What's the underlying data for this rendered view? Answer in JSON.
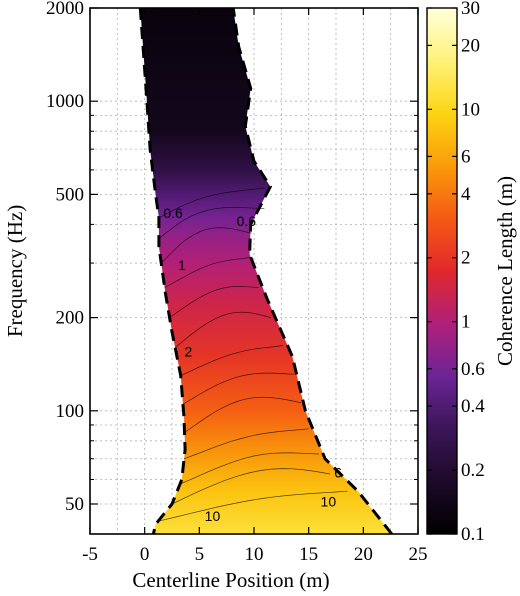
{
  "chart_data": {
    "type": "heatmap",
    "xlabel": "Centerline Position (m)",
    "ylabel": "Frequency (Hz)",
    "colorbar_label": "Coherence Length (m)",
    "xlim": [
      -5,
      25
    ],
    "ylim": [
      40,
      2000
    ],
    "y_scale": "log",
    "grid": true,
    "x_ticks": [
      -5,
      0,
      5,
      10,
      15,
      20,
      25
    ],
    "y_ticks": [
      50,
      100,
      200,
      500,
      1000,
      2000
    ],
    "colorbar_scale": "log",
    "colorbar_range": [
      0.1,
      30
    ],
    "colorbar_ticks": [
      0.1,
      0.2,
      0.4,
      0.6,
      1,
      2,
      4,
      6,
      10,
      20,
      30
    ],
    "contour_labels": [
      {
        "text": "0.6",
        "x": 2.6,
        "f": 420
      },
      {
        "text": "0.6",
        "x": 9.3,
        "f": 395
      },
      {
        "text": "1",
        "x": 3.4,
        "f": 285
      },
      {
        "text": "2",
        "x": 4.0,
        "f": 150
      },
      {
        "text": "6",
        "x": 17.7,
        "f": 61
      },
      {
        "text": "10",
        "x": 6.2,
        "f": 44
      },
      {
        "text": "10",
        "x": 16.8,
        "f": 49
      }
    ],
    "region_left_boundary": [
      {
        "x": -0.4,
        "f": 2000
      },
      {
        "x": 0.2,
        "f": 1000
      },
      {
        "x": 0.5,
        "f": 700
      },
      {
        "x": 1.0,
        "f": 500
      },
      {
        "x": 1.3,
        "f": 420
      },
      {
        "x": 1.3,
        "f": 340
      },
      {
        "x": 1.9,
        "f": 240
      },
      {
        "x": 2.5,
        "f": 180
      },
      {
        "x": 3.3,
        "f": 130
      },
      {
        "x": 3.6,
        "f": 95
      },
      {
        "x": 3.7,
        "f": 75
      },
      {
        "x": 3.4,
        "f": 60
      },
      {
        "x": 2.5,
        "f": 50
      },
      {
        "x": 1.0,
        "f": 43
      },
      {
        "x": 0.8,
        "f": 40
      }
    ],
    "region_right_boundary": [
      {
        "x": 22.6,
        "f": 40
      },
      {
        "x": 19.5,
        "f": 55
      },
      {
        "x": 16.5,
        "f": 70
      },
      {
        "x": 14.7,
        "f": 100
      },
      {
        "x": 13.5,
        "f": 150
      },
      {
        "x": 11.2,
        "f": 230
      },
      {
        "x": 9.6,
        "f": 320
      },
      {
        "x": 9.7,
        "f": 400
      },
      {
        "x": 11.5,
        "f": 530
      },
      {
        "x": 10.0,
        "f": 640
      },
      {
        "x": 9.2,
        "f": 830
      },
      {
        "x": 9.7,
        "f": 1100
      },
      {
        "x": 8.6,
        "f": 1500
      },
      {
        "x": 8.1,
        "f": 2000
      }
    ],
    "coherence_by_frequency": [
      {
        "f": 40,
        "value": 12
      },
      {
        "f": 55,
        "value": 8
      },
      {
        "f": 75,
        "value": 5
      },
      {
        "f": 100,
        "value": 3.2
      },
      {
        "f": 150,
        "value": 2
      },
      {
        "f": 220,
        "value": 1.4
      },
      {
        "f": 300,
        "value": 1
      },
      {
        "f": 360,
        "value": 0.8
      },
      {
        "f": 420,
        "value": 0.6
      },
      {
        "f": 500,
        "value": 0.4
      },
      {
        "f": 600,
        "value": 0.25
      },
      {
        "f": 800,
        "value": 0.15
      },
      {
        "f": 2000,
        "value": 0.12
      }
    ]
  },
  "colors": {
    "colormap": [
      "#000000",
      "#1c0a28",
      "#3b1558",
      "#6b2496",
      "#b0207a",
      "#e0282c",
      "#f55a14",
      "#f99b0a",
      "#fcd512",
      "#fff27a",
      "#ffffd9"
    ]
  }
}
